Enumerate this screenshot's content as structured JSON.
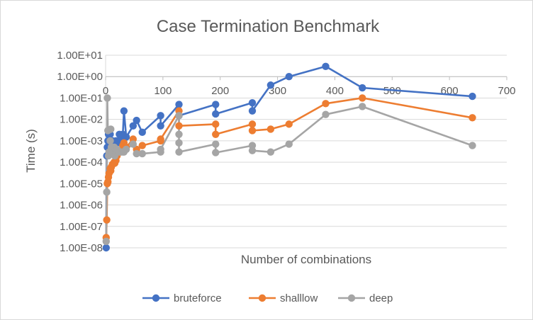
{
  "chart_data": {
    "type": "scatter",
    "title": "Case Termination Benchmark",
    "xlabel": "Number of combinations",
    "ylabel": "Time (s)",
    "xlim": [
      0,
      700
    ],
    "ylim_log10": [
      -8,
      1
    ],
    "y_scale": "log",
    "x_ticks": [
      "0",
      "100",
      "200",
      "300",
      "400",
      "500",
      "600",
      "700"
    ],
    "y_ticks": [
      "1.00E-08",
      "1.00E-07",
      "1.00E-06",
      "1.00E-05",
      "1.00E-04",
      "1.00E-03",
      "1.00E-02",
      "1.00E-01",
      "1.00E+00",
      "1.00E+01"
    ],
    "grid": "horizontal",
    "legend_position": "bottom",
    "series": [
      {
        "name": "bruteforce",
        "color": "#4472c4",
        "points": [
          [
            1,
            1e-08
          ],
          [
            2,
            0.0002
          ],
          [
            3,
            0.0005
          ],
          [
            4,
            0.001
          ],
          [
            5,
            0.002
          ],
          [
            6,
            0.001
          ],
          [
            8,
            0.002
          ],
          [
            9,
            0.001
          ],
          [
            10,
            0.0005
          ],
          [
            12,
            0.001
          ],
          [
            15,
            0.0008
          ],
          [
            16,
            0.0005
          ],
          [
            18,
            0.001
          ],
          [
            20,
            0.0008
          ],
          [
            24,
            0.002
          ],
          [
            27,
            0.001
          ],
          [
            30,
            0.002
          ],
          [
            32,
            0.025
          ],
          [
            36,
            0.0015
          ],
          [
            48,
            0.005
          ],
          [
            54,
            0.009
          ],
          [
            64,
            0.0025
          ],
          [
            96,
            0.015
          ],
          [
            96,
            0.005
          ],
          [
            128,
            0.05
          ],
          [
            128,
            0.015
          ],
          [
            192,
            0.05
          ],
          [
            192,
            0.018
          ],
          [
            256,
            0.06
          ],
          [
            256,
            0.025
          ],
          [
            288,
            0.4
          ],
          [
            320,
            1.0
          ],
          [
            384,
            3.0
          ],
          [
            448,
            0.3
          ],
          [
            640,
            0.12
          ]
        ]
      },
      {
        "name": "shalllow",
        "color": "#ed7d31",
        "points": [
          [
            1,
            3e-08
          ],
          [
            2,
            2e-07
          ],
          [
            3,
            1e-05
          ],
          [
            4,
            1.2e-05
          ],
          [
            5,
            2e-05
          ],
          [
            6,
            3e-05
          ],
          [
            8,
            5e-05
          ],
          [
            9,
            4e-05
          ],
          [
            10,
            6e-05
          ],
          [
            12,
            8e-05
          ],
          [
            15,
            0.0001
          ],
          [
            16,
            9e-05
          ],
          [
            18,
            0.00012
          ],
          [
            20,
            0.0002
          ],
          [
            24,
            0.0003
          ],
          [
            27,
            0.0004
          ],
          [
            30,
            0.0006
          ],
          [
            32,
            0.0008
          ],
          [
            36,
            0.0005
          ],
          [
            48,
            0.0012
          ],
          [
            54,
            0.0004
          ],
          [
            64,
            0.0006
          ],
          [
            96,
            0.001
          ],
          [
            96,
            0.0012
          ],
          [
            128,
            0.025
          ],
          [
            128,
            0.005
          ],
          [
            192,
            0.006
          ],
          [
            192,
            0.002
          ],
          [
            256,
            0.006
          ],
          [
            256,
            0.003
          ],
          [
            288,
            0.0035
          ],
          [
            320,
            0.006
          ],
          [
            384,
            0.055
          ],
          [
            448,
            0.1
          ],
          [
            640,
            0.012
          ]
        ]
      },
      {
        "name": "deep",
        "color": "#a5a5a5",
        "points": [
          [
            1,
            2e-08
          ],
          [
            2,
            4e-06
          ],
          [
            3,
            0.1
          ],
          [
            4,
            0.003
          ],
          [
            5,
            0.0002
          ],
          [
            6,
            0.0003
          ],
          [
            8,
            0.001
          ],
          [
            9,
            0.0035
          ],
          [
            10,
            0.0005
          ],
          [
            12,
            0.0003
          ],
          [
            15,
            0.0005
          ],
          [
            16,
            0.0002
          ],
          [
            18,
            0.0003
          ],
          [
            20,
            0.0004
          ],
          [
            24,
            0.0003
          ],
          [
            27,
            0.0003
          ],
          [
            30,
            0.0003
          ],
          [
            32,
            0.0003
          ],
          [
            36,
            0.0004
          ],
          [
            48,
            0.0007
          ],
          [
            54,
            0.00025
          ],
          [
            64,
            0.00025
          ],
          [
            96,
            0.0003
          ],
          [
            96,
            0.0004
          ],
          [
            128,
            0.015
          ],
          [
            128,
            0.002
          ],
          [
            128,
            0.0008
          ],
          [
            128,
            0.0003
          ],
          [
            192,
            0.0007
          ],
          [
            192,
            0.00028
          ],
          [
            256,
            0.0006
          ],
          [
            256,
            0.00035
          ],
          [
            288,
            0.0003
          ],
          [
            320,
            0.0007
          ],
          [
            384,
            0.017
          ],
          [
            448,
            0.04
          ],
          [
            640,
            0.0006
          ]
        ]
      }
    ]
  }
}
